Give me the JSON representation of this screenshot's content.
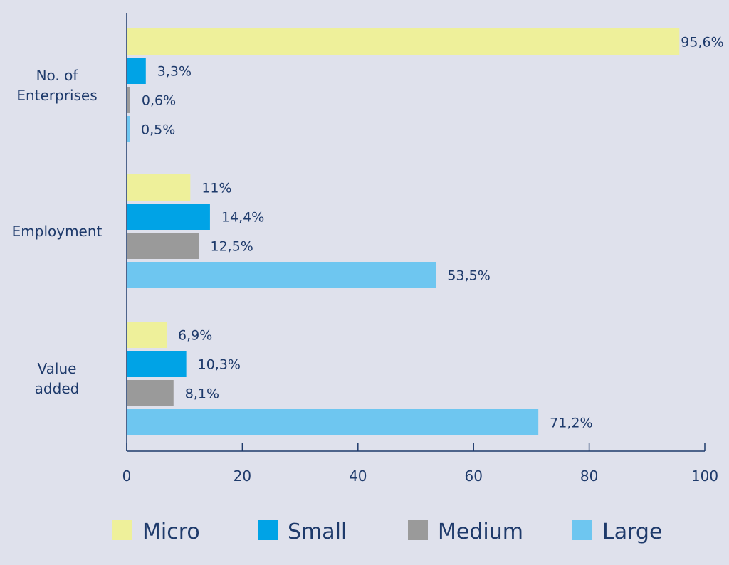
{
  "chart_data": {
    "type": "bar",
    "orientation": "horizontal",
    "categories": [
      "No. of\nEnterprises",
      "Employment",
      "Value\nadded"
    ],
    "series": [
      {
        "name": "Micro",
        "color": "#eef09a",
        "values": [
          95.6,
          11,
          6.9
        ],
        "labels": [
          "95,6%",
          "11%",
          "6,9%"
        ]
      },
      {
        "name": "Small",
        "color": "#00a3e6",
        "values": [
          3.3,
          14.4,
          10.3
        ],
        "labels": [
          "3,3%",
          "14,4%",
          "10,3%"
        ]
      },
      {
        "name": "Medium",
        "color": "#9a9a9a",
        "values": [
          0.6,
          12.5,
          8.1
        ],
        "labels": [
          "0,6%",
          "12,5%",
          "8,1%"
        ]
      },
      {
        "name": "Large",
        "color": "#6ec6f0",
        "values": [
          0.5,
          53.5,
          71.2
        ],
        "labels": [
          "0,5%",
          "53,5%",
          "71,2%"
        ]
      }
    ],
    "xlim": [
      0,
      100
    ],
    "xticks": [
      0,
      20,
      40,
      60,
      80,
      100
    ],
    "grid": false,
    "legend": "bottom"
  }
}
